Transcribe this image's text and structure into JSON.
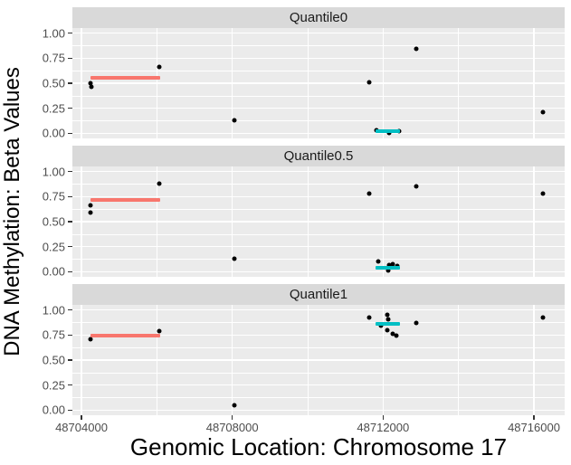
{
  "figure": {
    "x_axis_title": "Genomic Location: Chromosome 17",
    "y_axis_title": "DNA Methylation: Beta Values"
  },
  "colors": {
    "panel_background": "#EBEBEB",
    "strip_background": "#D9D9D9",
    "grid": "#FFFFFF",
    "point": "#000000",
    "segment_red": "#F8766D",
    "segment_cyan": "#00BFC4",
    "tick_label": "#4D4D4D",
    "axis_text": "#000000"
  },
  "chart_data": {
    "type": "scatter",
    "xlabel": "Genomic Location: Chromosome 17",
    "ylabel": "DNA Methylation: Beta Values",
    "xlim": [
      48703760,
      48716816
    ],
    "ylim": [
      -0.05,
      1.05
    ],
    "grid": true,
    "legend": "none",
    "x_ticks": [
      {
        "value": 48704000,
        "label": "48704000"
      },
      {
        "value": 48708000,
        "label": "48708000"
      },
      {
        "value": 48712000,
        "label": "48712000"
      },
      {
        "value": 48716000,
        "label": "48716000"
      }
    ],
    "y_ticks": [
      {
        "value": 1.0,
        "label": "1.00"
      },
      {
        "value": 0.75,
        "label": "0.75"
      },
      {
        "value": 0.5,
        "label": "0.50"
      },
      {
        "value": 0.25,
        "label": "0.25"
      },
      {
        "value": 0.0,
        "label": "0.00"
      }
    ],
    "x_minor": [
      48706000,
      48710000,
      48714000
    ],
    "y_minor": [
      0.125,
      0.375,
      0.625,
      0.875
    ],
    "facets": [
      {
        "label": "Quantile0",
        "points": [
          [
            48704230,
            0.5
          ],
          [
            48704260,
            0.46
          ],
          [
            48706070,
            0.66
          ],
          [
            48708050,
            0.13
          ],
          [
            48711640,
            0.51
          ],
          [
            48711820,
            0.03
          ],
          [
            48712150,
            0.0
          ],
          [
            48712420,
            0.02
          ],
          [
            48712890,
            0.84
          ],
          [
            48716250,
            0.21
          ]
        ],
        "segments": [
          {
            "x1": 48704250,
            "x2": 48706100,
            "y": 0.55,
            "color_key": "segment_red"
          },
          {
            "x1": 48711790,
            "x2": 48712440,
            "y": 0.02,
            "color_key": "segment_cyan"
          }
        ]
      },
      {
        "label": "Quantile0.5",
        "points": [
          [
            48704230,
            0.66
          ],
          [
            48704250,
            0.59
          ],
          [
            48706070,
            0.88
          ],
          [
            48708050,
            0.13
          ],
          [
            48711640,
            0.78
          ],
          [
            48711870,
            0.1
          ],
          [
            48712140,
            0.01
          ],
          [
            48712160,
            0.07
          ],
          [
            48712260,
            0.08
          ],
          [
            48712370,
            0.06
          ],
          [
            48712890,
            0.85
          ],
          [
            48716250,
            0.78
          ]
        ],
        "segments": [
          {
            "x1": 48704250,
            "x2": 48706100,
            "y": 0.72,
            "color_key": "segment_red"
          },
          {
            "x1": 48711790,
            "x2": 48712440,
            "y": 0.04,
            "color_key": "segment_cyan"
          }
        ]
      },
      {
        "label": "Quantile1",
        "points": [
          [
            48704240,
            0.71
          ],
          [
            48706070,
            0.79
          ],
          [
            48708050,
            0.05
          ],
          [
            48711640,
            0.92
          ],
          [
            48711950,
            0.84
          ],
          [
            48712100,
            0.8
          ],
          [
            48712120,
            0.95
          ],
          [
            48712140,
            0.91
          ],
          [
            48712260,
            0.76
          ],
          [
            48712360,
            0.74
          ],
          [
            48712890,
            0.87
          ],
          [
            48716250,
            0.92
          ]
        ],
        "segments": [
          {
            "x1": 48704250,
            "x2": 48706100,
            "y": 0.74,
            "color_key": "segment_red"
          },
          {
            "x1": 48711790,
            "x2": 48712440,
            "y": 0.86,
            "color_key": "segment_cyan"
          }
        ]
      }
    ]
  }
}
